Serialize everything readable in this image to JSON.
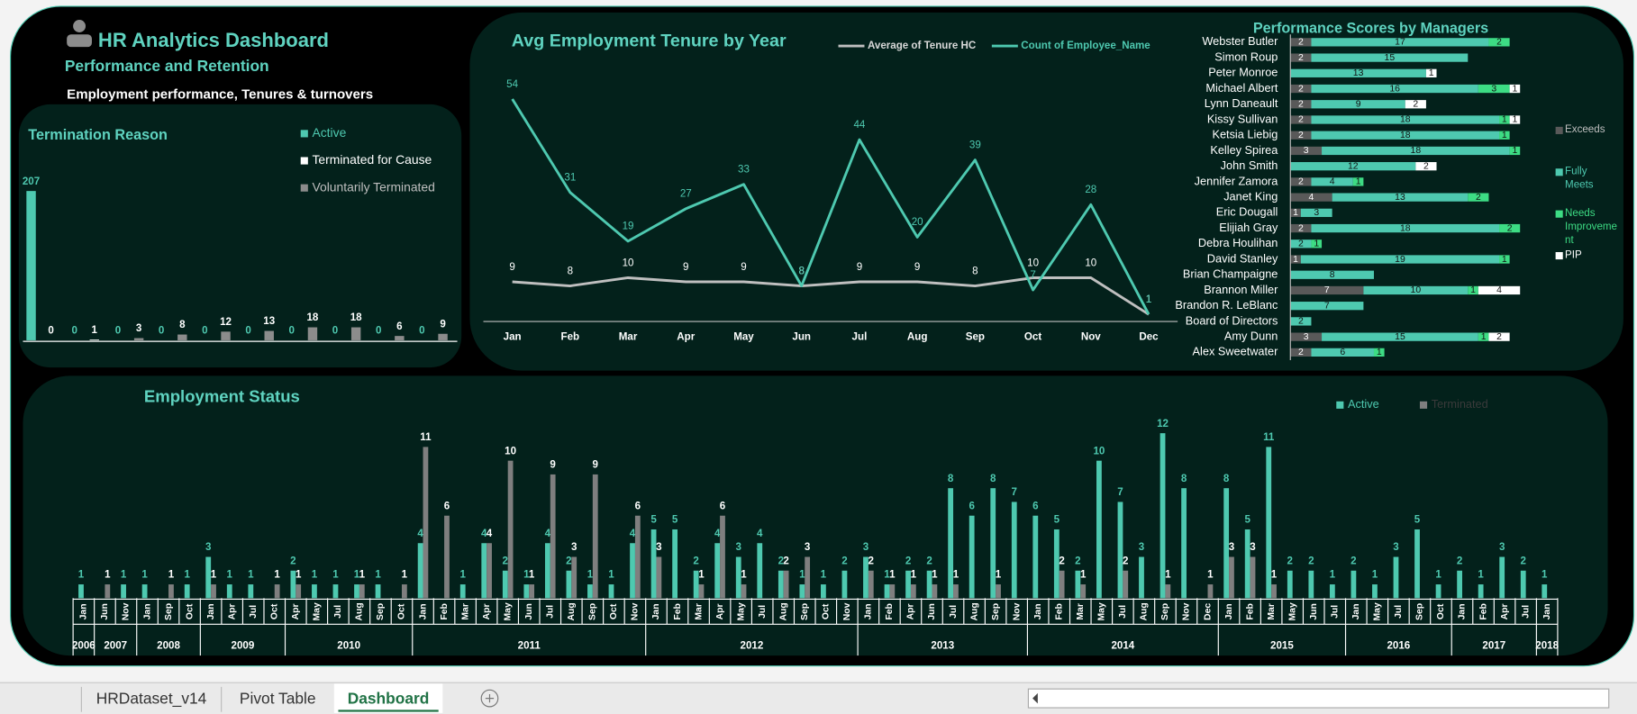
{
  "header": {
    "title": "HR Analytics Dashboard",
    "subtitle": "Performance and Retention",
    "tagline": "Employment performance, Tenures & turnovers"
  },
  "tabs": [
    "HRDataset_v14",
    "Pivot Table",
    "Dashboard"
  ],
  "chart_data": [
    {
      "type": "bar",
      "title": "Termination Reason",
      "categories": [
        null,
        null,
        null,
        null,
        null,
        null,
        null,
        null,
        null,
        null
      ],
      "series": [
        {
          "name": "Active",
          "color": "#4ec9b0",
          "values": [
            207,
            0,
            0,
            0,
            0,
            0,
            0,
            0,
            0,
            0
          ]
        },
        {
          "name": "Terminated for Cause",
          "color": "#ffffff",
          "values": [
            0,
            1,
            null,
            null,
            null,
            null,
            null,
            null,
            null,
            null
          ]
        },
        {
          "name": "Voluntarily Terminated",
          "color": "#8c8c8c",
          "values": [
            null,
            null,
            3,
            8,
            12,
            13,
            18,
            18,
            6,
            9
          ]
        }
      ],
      "ylim": [
        0,
        220
      ],
      "legend": "right"
    },
    {
      "type": "line",
      "title": "Avg Employment Tenure by Year",
      "categories": [
        "Jan",
        "Feb",
        "Mar",
        "Apr",
        "May",
        "Jun",
        "Jul",
        "Aug",
        "Sep",
        "Oct",
        "Nov",
        "Dec"
      ],
      "series": [
        {
          "name": "Average of Tenure HC",
          "color": "#bfbfbf",
          "values": [
            9,
            8,
            10,
            9,
            9,
            8,
            9,
            9,
            8,
            10,
            10,
            1
          ]
        },
        {
          "name": "Count of Employee_Name",
          "color": "#4ec9b0",
          "values": [
            54,
            31,
            19,
            27,
            33,
            8,
            44,
            20,
            39,
            7,
            28,
            1
          ]
        }
      ],
      "ylim": [
        0,
        55
      ],
      "legend": "top"
    },
    {
      "type": "barh",
      "stacked": true,
      "title": "Performance Scores by Managers",
      "categories": [
        "Webster Butler",
        "Simon Roup",
        "Peter Monroe",
        "Michael Albert",
        "Lynn Daneault",
        "Kissy Sullivan",
        "Ketsia Liebig",
        "Kelley Spirea",
        "John Smith",
        "Jennifer Zamora",
        "Janet King",
        "Eric Dougall",
        "Elijiah Gray",
        "Debra Houlihan",
        "David Stanley",
        "Brian Champaigne",
        "Brannon Miller",
        "Brandon R. LeBlanc",
        "Board of Directors",
        "Amy Dunn",
        "Alex Sweetwater"
      ],
      "series": [
        {
          "name": "Exceeds",
          "color": "#595959",
          "values": [
            2,
            2,
            null,
            2,
            2,
            2,
            2,
            3,
            null,
            2,
            4,
            1,
            2,
            null,
            1,
            null,
            7,
            null,
            null,
            3,
            2
          ]
        },
        {
          "name": "Fully Meets",
          "color": "#4ec9b0",
          "values": [
            17,
            15,
            13,
            16,
            9,
            18,
            18,
            18,
            12,
            4,
            13,
            3,
            18,
            2,
            19,
            8,
            10,
            7,
            2,
            15,
            6
          ]
        },
        {
          "name": "Needs Improvement",
          "color": "#3ddc84",
          "values": [
            2,
            null,
            null,
            3,
            null,
            1,
            1,
            1,
            null,
            1,
            2,
            null,
            2,
            1,
            1,
            null,
            1,
            null,
            null,
            1,
            1
          ]
        },
        {
          "name": "PIP",
          "color": "#ffffff",
          "values": [
            null,
            null,
            1,
            1,
            2,
            1,
            null,
            null,
            2,
            null,
            null,
            null,
            null,
            null,
            null,
            null,
            4,
            null,
            null,
            2,
            null
          ]
        }
      ],
      "xlim": [
        0,
        25
      ],
      "legend": "right"
    },
    {
      "type": "bar",
      "title": "Employment Status",
      "groups": [
        {
          "label": "2006",
          "categories": [
            "Jan"
          ]
        },
        {
          "label": "2007",
          "categories": [
            "Jun",
            "Nov"
          ]
        },
        {
          "label": "2008",
          "categories": [
            "Jan",
            "Sep",
            "Oct"
          ]
        },
        {
          "label": "2009",
          "categories": [
            "Jan",
            "Apr",
            "Jul",
            "Oct"
          ]
        },
        {
          "label": "2010",
          "categories": [
            "Apr",
            "May",
            "Jul",
            "Aug",
            "Sep",
            "Oct"
          ]
        },
        {
          "label": "2011",
          "categories": [
            "Jan",
            "Feb",
            "Mar",
            "Apr",
            "May",
            "Jun",
            "Jul",
            "Aug",
            "Sep",
            "Oct",
            "Nov"
          ]
        },
        {
          "label": "2012",
          "categories": [
            "Jan",
            "Feb",
            "Mar",
            "Apr",
            "May",
            "Jul",
            "Aug",
            "Sep",
            "Oct",
            "Nov"
          ]
        },
        {
          "label": "2013",
          "categories": [
            "Jan",
            "Feb",
            "Apr",
            "Jun",
            "Jul",
            "Aug",
            "Sep",
            "Nov"
          ]
        },
        {
          "label": "2014",
          "categories": [
            "Jan",
            "Feb",
            "Mar",
            "May",
            "Jul",
            "Aug",
            "Sep",
            "Nov",
            "Dec"
          ]
        },
        {
          "label": "2015",
          "categories": [
            "Jan",
            "Feb",
            "Mar",
            "May",
            "Jun",
            "Jul"
          ]
        },
        {
          "label": "2016",
          "categories": [
            "Jan",
            "May",
            "Jul",
            "Sep",
            "Oct"
          ]
        },
        {
          "label": "2017",
          "categories": [
            "Jan",
            "Feb",
            "Apr",
            "Jul"
          ]
        },
        {
          "label": "2018",
          "categories": [
            "Jan"
          ]
        }
      ],
      "series": [
        {
          "name": "Active",
          "color": "#4ec9b0",
          "values": [
            1,
            null,
            1,
            1,
            null,
            1,
            3,
            1,
            1,
            null,
            2,
            1,
            1,
            1,
            1,
            null,
            4,
            null,
            1,
            4,
            2,
            1,
            4,
            2,
            1,
            1,
            4,
            5,
            5,
            2,
            4,
            3,
            4,
            2,
            1,
            1,
            2,
            3,
            1,
            2,
            2,
            8,
            6,
            8,
            7,
            6,
            5,
            2,
            10,
            7,
            3,
            12,
            8,
            null,
            8,
            5,
            11,
            2,
            2,
            1,
            2,
            1,
            3,
            5,
            1,
            2,
            1,
            3,
            2,
            1
          ]
        },
        {
          "name": "Terminated",
          "color": "#7f7f7f",
          "values": [
            null,
            1,
            null,
            null,
            1,
            null,
            1,
            null,
            null,
            1,
            1,
            null,
            null,
            1,
            null,
            1,
            11,
            6,
            null,
            4,
            10,
            1,
            9,
            3,
            9,
            null,
            6,
            3,
            null,
            1,
            6,
            1,
            null,
            2,
            3,
            null,
            null,
            2,
            1,
            1,
            1,
            1,
            null,
            1,
            null,
            null,
            2,
            1,
            null,
            2,
            null,
            1,
            null,
            1,
            3,
            3,
            1,
            null,
            null,
            null,
            null,
            null,
            null,
            null,
            null,
            null,
            null,
            null,
            null,
            null
          ]
        }
      ],
      "ylim": [
        0,
        12
      ],
      "legend": "top"
    }
  ]
}
